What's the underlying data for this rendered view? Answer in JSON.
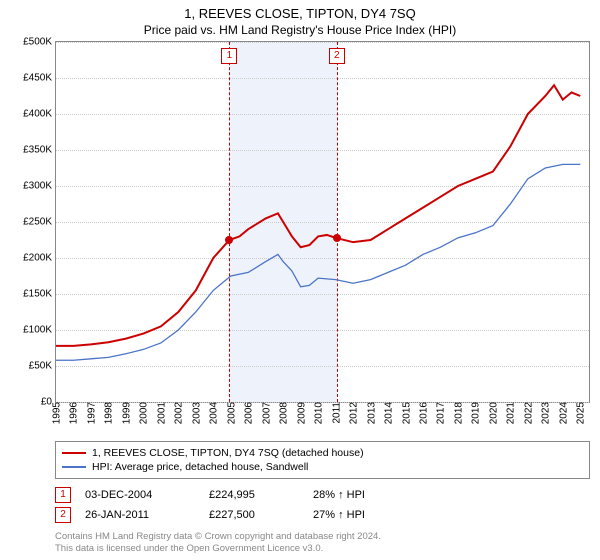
{
  "title": "1, REEVES CLOSE, TIPTON, DY4 7SQ",
  "subtitle": "Price paid vs. HM Land Registry's House Price Index (HPI)",
  "chart": {
    "type": "line",
    "x_range": [
      1995,
      2025.5
    ],
    "y_range": [
      0,
      500000
    ],
    "y_ticks": [
      0,
      50000,
      100000,
      150000,
      200000,
      250000,
      300000,
      350000,
      400000,
      450000,
      500000
    ],
    "y_tick_labels": [
      "£0",
      "£50K",
      "£100K",
      "£150K",
      "£200K",
      "£250K",
      "£300K",
      "£350K",
      "£400K",
      "£450K",
      "£500K"
    ],
    "x_ticks": [
      1995,
      1996,
      1997,
      1998,
      1999,
      2000,
      2001,
      2002,
      2003,
      2004,
      2005,
      2006,
      2007,
      2008,
      2009,
      2010,
      2011,
      2012,
      2013,
      2014,
      2015,
      2016,
      2017,
      2018,
      2019,
      2020,
      2021,
      2022,
      2023,
      2024,
      2025
    ],
    "background_color": "#ffffff",
    "grid_color": "#cccccc",
    "band_color": "#eef3fb",
    "band_start": 2004.92,
    "band_end": 2011.07,
    "series": [
      {
        "name": "1, REEVES CLOSE, TIPTON, DY4 7SQ (detached house)",
        "color": "#cc0000",
        "width": 2,
        "data": [
          [
            1995,
            78000
          ],
          [
            1996,
            78000
          ],
          [
            1997,
            80000
          ],
          [
            1998,
            83000
          ],
          [
            1999,
            88000
          ],
          [
            2000,
            95000
          ],
          [
            2001,
            105000
          ],
          [
            2002,
            125000
          ],
          [
            2003,
            155000
          ],
          [
            2004,
            200000
          ],
          [
            2004.92,
            224995
          ],
          [
            2005.5,
            230000
          ],
          [
            2006,
            240000
          ],
          [
            2007,
            255000
          ],
          [
            2007.7,
            262000
          ],
          [
            2008,
            250000
          ],
          [
            2008.5,
            230000
          ],
          [
            2009,
            215000
          ],
          [
            2009.5,
            218000
          ],
          [
            2010,
            230000
          ],
          [
            2010.5,
            232000
          ],
          [
            2011.07,
            227500
          ],
          [
            2012,
            222000
          ],
          [
            2013,
            225000
          ],
          [
            2014,
            240000
          ],
          [
            2015,
            255000
          ],
          [
            2016,
            270000
          ],
          [
            2017,
            285000
          ],
          [
            2018,
            300000
          ],
          [
            2019,
            310000
          ],
          [
            2020,
            320000
          ],
          [
            2021,
            355000
          ],
          [
            2022,
            400000
          ],
          [
            2023,
            425000
          ],
          [
            2023.5,
            440000
          ],
          [
            2024,
            420000
          ],
          [
            2024.5,
            430000
          ],
          [
            2025,
            425000
          ]
        ]
      },
      {
        "name": "HPI: Average price, detached house, Sandwell",
        "color": "#4a74c9",
        "width": 1.3,
        "data": [
          [
            1995,
            58000
          ],
          [
            1996,
            58000
          ],
          [
            1997,
            60000
          ],
          [
            1998,
            62000
          ],
          [
            1999,
            67000
          ],
          [
            2000,
            73000
          ],
          [
            2001,
            82000
          ],
          [
            2002,
            100000
          ],
          [
            2003,
            125000
          ],
          [
            2004,
            155000
          ],
          [
            2005,
            175000
          ],
          [
            2006,
            180000
          ],
          [
            2007,
            195000
          ],
          [
            2007.7,
            205000
          ],
          [
            2008,
            195000
          ],
          [
            2008.5,
            182000
          ],
          [
            2009,
            160000
          ],
          [
            2009.5,
            162000
          ],
          [
            2010,
            172000
          ],
          [
            2011,
            170000
          ],
          [
            2012,
            165000
          ],
          [
            2013,
            170000
          ],
          [
            2014,
            180000
          ],
          [
            2015,
            190000
          ],
          [
            2016,
            205000
          ],
          [
            2017,
            215000
          ],
          [
            2018,
            228000
          ],
          [
            2019,
            235000
          ],
          [
            2020,
            245000
          ],
          [
            2021,
            275000
          ],
          [
            2022,
            310000
          ],
          [
            2023,
            325000
          ],
          [
            2024,
            330000
          ],
          [
            2025,
            330000
          ]
        ]
      }
    ],
    "sale_points": [
      {
        "x": 2004.92,
        "y": 224995,
        "color": "#cc0000",
        "label": "1"
      },
      {
        "x": 2011.07,
        "y": 227500,
        "color": "#cc0000",
        "label": "2"
      }
    ]
  },
  "legend": [
    {
      "color": "#cc0000",
      "label": "1, REEVES CLOSE, TIPTON, DY4 7SQ (detached house)"
    },
    {
      "color": "#4a74c9",
      "label": "HPI: Average price, detached house, Sandwell"
    }
  ],
  "sales": [
    {
      "marker": "1",
      "date": "03-DEC-2004",
      "price": "£224,995",
      "hpi": "28% ↑ HPI"
    },
    {
      "marker": "2",
      "date": "26-JAN-2011",
      "price": "£227,500",
      "hpi": "27% ↑ HPI"
    }
  ],
  "footer": [
    "Contains HM Land Registry data © Crown copyright and database right 2024.",
    "This data is licensed under the Open Government Licence v3.0."
  ]
}
